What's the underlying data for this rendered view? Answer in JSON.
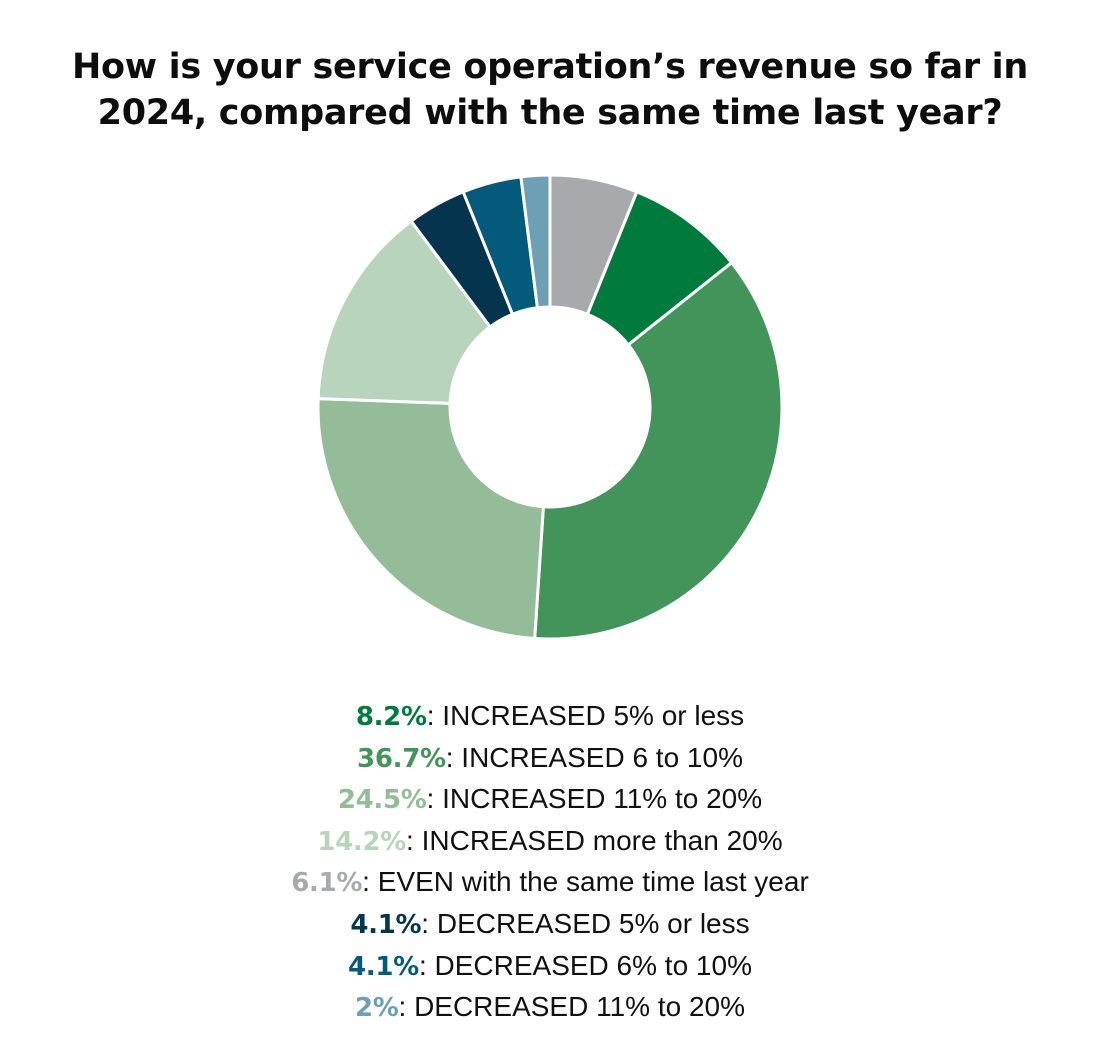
{
  "chart_data": {
    "type": "pie",
    "variant": "donut",
    "title_lines": [
      "How is your service operation’s revenue so far in",
      "2024, compared with the same time last year?"
    ],
    "slices": [
      {
        "name": "INCREASED 5% or less",
        "value": 8.2,
        "label": "8.2%",
        "color": "#007a3d"
      },
      {
        "name": "INCREASED 6 to 10%",
        "value": 36.7,
        "label": "36.7%",
        "color": "#42945a"
      },
      {
        "name": "INCREASED 11% to 20%",
        "value": 24.5,
        "label": "24.5%",
        "color": "#94bc99"
      },
      {
        "name": "INCREASED more than 20%",
        "value": 14.2,
        "label": "14.2%",
        "color": "#b8d4bc"
      },
      {
        "name": "EVEN with the same time last year",
        "value": 6.1,
        "label": "6.1%",
        "color": "#a7a9ac"
      },
      {
        "name": "DECREASED 5% or less",
        "value": 4.1,
        "label": "4.1%",
        "color": "#04344e"
      },
      {
        "name": "DECREASED 6% to 10%",
        "value": 4.1,
        "label": "4.1%",
        "color": "#045a7a"
      },
      {
        "name": "DECREASED 11% to 20%",
        "value": 2,
        "label": "2%",
        "color": "#6d9fb5"
      }
    ],
    "draw_order": [
      4,
      0,
      1,
      2,
      3,
      5,
      6,
      7
    ],
    "start": "top",
    "direction": "clockwise",
    "separator_color": "#ffffff"
  }
}
